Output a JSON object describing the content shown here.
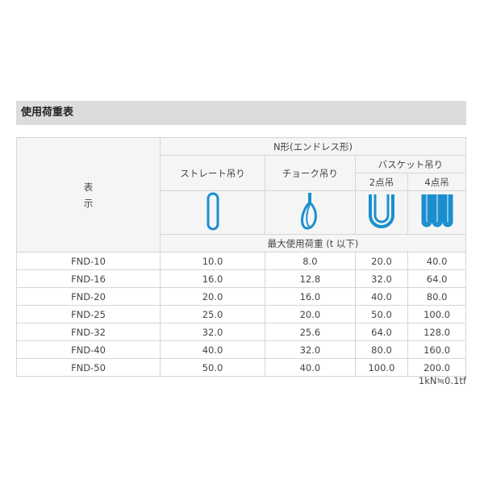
{
  "section_title": "使用荷重表",
  "header": {
    "label_col": [
      "表",
      "示"
    ],
    "type": "N形(エンドレス形)",
    "straight": "ストレート吊り",
    "choke": "チョーク吊り",
    "basket": "バスケット吊り",
    "two_point": "2点吊",
    "four_point": "4点吊",
    "unit": "最大使用荷重 (t 以下)"
  },
  "icons": [
    "sling-straight-icon",
    "sling-choke-icon",
    "sling-basket-2-icon",
    "sling-basket-4-icon"
  ],
  "icon_color": "#1a8fd0",
  "rows": [
    [
      "FND-10",
      "10.0",
      "8.0",
      "20.0",
      "40.0"
    ],
    [
      "FND-16",
      "16.0",
      "12.8",
      "32.0",
      "64.0"
    ],
    [
      "FND-20",
      "20.0",
      "16.0",
      "40.0",
      "80.0"
    ],
    [
      "FND-25",
      "25.0",
      "20.0",
      "50.0",
      "100.0"
    ],
    [
      "FND-32",
      "32.0",
      "25.6",
      "64.0",
      "128.0"
    ],
    [
      "FND-40",
      "40.0",
      "32.0",
      "80.0",
      "160.0"
    ],
    [
      "FND-50",
      "50.0",
      "40.0",
      "100.0",
      "200.0"
    ]
  ],
  "note": "1kN≒0.1tf"
}
